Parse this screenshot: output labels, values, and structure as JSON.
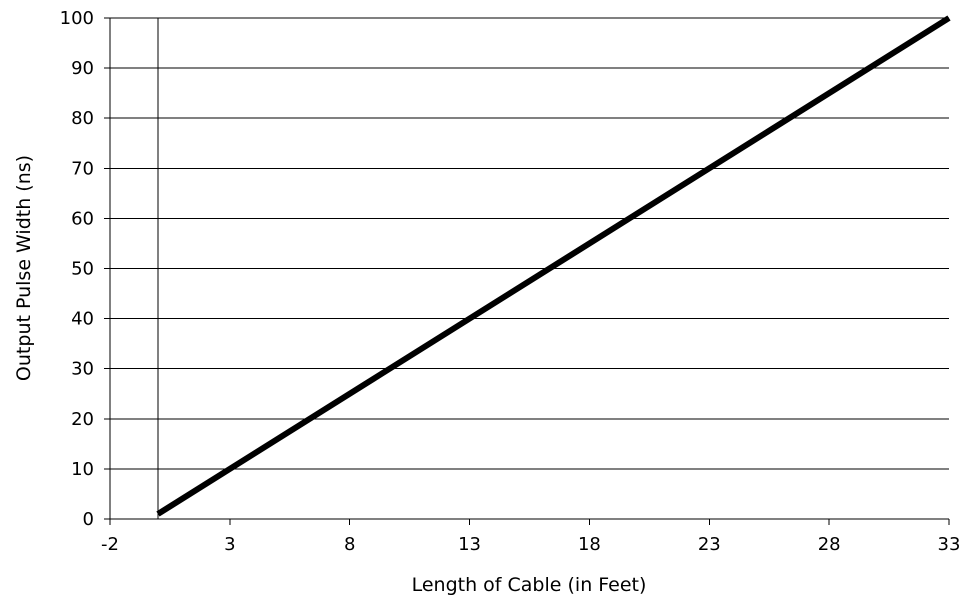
{
  "chart_data": {
    "type": "line",
    "xlabel": "Length of Cable (in Feet)",
    "ylabel": "Output Pulse Width (ns)",
    "xlim": [
      -2,
      33
    ],
    "ylim": [
      0,
      100
    ],
    "xticks": [
      -2,
      3,
      8,
      13,
      18,
      23,
      28,
      33
    ],
    "yticks": [
      0,
      10,
      20,
      30,
      40,
      50,
      60,
      70,
      80,
      90,
      100
    ],
    "grid": "horizontal",
    "reference_line_x": 0,
    "colors": {
      "line": "#000000",
      "grid": "#000000"
    },
    "series": [
      {
        "x": [
          0,
          33
        ],
        "y": [
          1,
          100
        ]
      }
    ]
  }
}
